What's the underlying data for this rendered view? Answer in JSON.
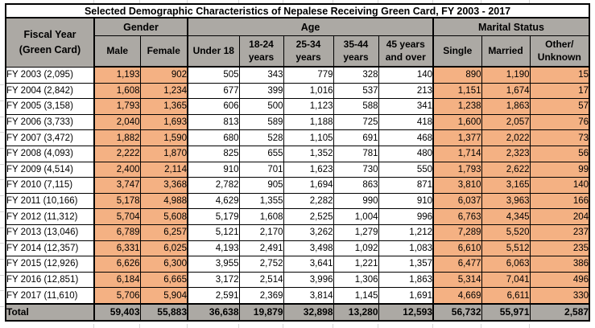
{
  "title": "Selected Demographic Characteristics of Nepalese Receiving Green Card, FY 2003 - 2017",
  "colors": {
    "header_fill": "#ACA9A4",
    "highlight_fill": "#F4B183",
    "body_fill": "#FFFFFF",
    "border": "#000000"
  },
  "chart_data": {
    "type": "table",
    "title": "Selected Demographic Characteristics of Nepalese Receiving Green Card, FY 2003 - 2017",
    "row_header": "Fiscal Year\n(Green Card)",
    "groups": [
      {
        "label": "Gender"
      },
      {
        "label": "Age"
      },
      {
        "label": "Marital Status"
      }
    ],
    "columns": [
      "Male",
      "Female",
      "Under 18",
      "18-24\nyears",
      "25-34\nyears",
      "35-44\nyears",
      "45 years\nand over",
      "Single",
      "Married",
      "Other/\nUnknown"
    ],
    "rows": [
      {
        "label": "FY 2003 (2,095)",
        "values": [
          "1,193",
          "902",
          "505",
          "343",
          "779",
          "328",
          "140",
          "890",
          "1,190",
          "15"
        ]
      },
      {
        "label": "FY 2004 (2,842)",
        "values": [
          "1,608",
          "1,234",
          "677",
          "399",
          "1,016",
          "537",
          "213",
          "1,151",
          "1,674",
          "17"
        ]
      },
      {
        "label": "FY 2005 (3,158)",
        "values": [
          "1,793",
          "1,365",
          "606",
          "500",
          "1,123",
          "588",
          "341",
          "1,238",
          "1,863",
          "57"
        ]
      },
      {
        "label": "FY 2006 (3,733)",
        "values": [
          "2,040",
          "1,693",
          "813",
          "589",
          "1,188",
          "725",
          "418",
          "1,600",
          "2,057",
          "76"
        ]
      },
      {
        "label": "FY 2007 (3,472)",
        "values": [
          "1,882",
          "1,590",
          "680",
          "528",
          "1,105",
          "691",
          "468",
          "1,377",
          "2,022",
          "73"
        ]
      },
      {
        "label": "FY 2008 (4,093)",
        "values": [
          "2,222",
          "1,870",
          "825",
          "655",
          "1,352",
          "781",
          "480",
          "1,714",
          "2,323",
          "56"
        ]
      },
      {
        "label": "FY 2009 (4,514)",
        "values": [
          "2,400",
          "2,114",
          "910",
          "701",
          "1,623",
          "730",
          "550",
          "1,793",
          "2,622",
          "99"
        ]
      },
      {
        "label": "FY 2010 (7,115)",
        "values": [
          "3,747",
          "3,368",
          "2,782",
          "905",
          "1,694",
          "863",
          "871",
          "3,810",
          "3,165",
          "140"
        ]
      },
      {
        "label": "FY 2011 (10,166)",
        "values": [
          "5,178",
          "4,988",
          "4,629",
          "1,355",
          "2,282",
          "990",
          "910",
          "6,037",
          "3,963",
          "166"
        ]
      },
      {
        "label": "FY 2012 (11,312)",
        "values": [
          "5,704",
          "5,608",
          "5,179",
          "1,608",
          "2,525",
          "1,004",
          "996",
          "6,763",
          "4,345",
          "204"
        ]
      },
      {
        "label": "FY 2013 (13,046)",
        "values": [
          "6,789",
          "6,257",
          "5,121",
          "2,170",
          "3,262",
          "1,279",
          "1,212",
          "7,289",
          "5,520",
          "237"
        ]
      },
      {
        "label": "FY 2014 (12,357)",
        "values": [
          "6,331",
          "6,025",
          "4,193",
          "2,491",
          "3,498",
          "1,092",
          "1,083",
          "6,610",
          "5,512",
          "235"
        ]
      },
      {
        "label": "FY 2015 (12,926)",
        "values": [
          "6,626",
          "6,300",
          "3,955",
          "2,752",
          "3,641",
          "1,221",
          "1,357",
          "6,477",
          "6,063",
          "386"
        ]
      },
      {
        "label": "FY 2016 (12,851)",
        "values": [
          "6,184",
          "6,665",
          "3,172",
          "2,514",
          "3,996",
          "1,306",
          "1,863",
          "5,314",
          "7,041",
          "496"
        ]
      },
      {
        "label": "FY 2017 (11,610)",
        "values": [
          "5,706",
          "5,904",
          "2,591",
          "2,369",
          "3,814",
          "1,145",
          "1,691",
          "4,669",
          "6,611",
          "330"
        ]
      }
    ],
    "total": {
      "label": "Total",
      "values": [
        "59,403",
        "55,883",
        "36,638",
        "19,879",
        "32,898",
        "13,280",
        "12,593",
        "56,732",
        "55,971",
        "2,587"
      ]
    }
  }
}
